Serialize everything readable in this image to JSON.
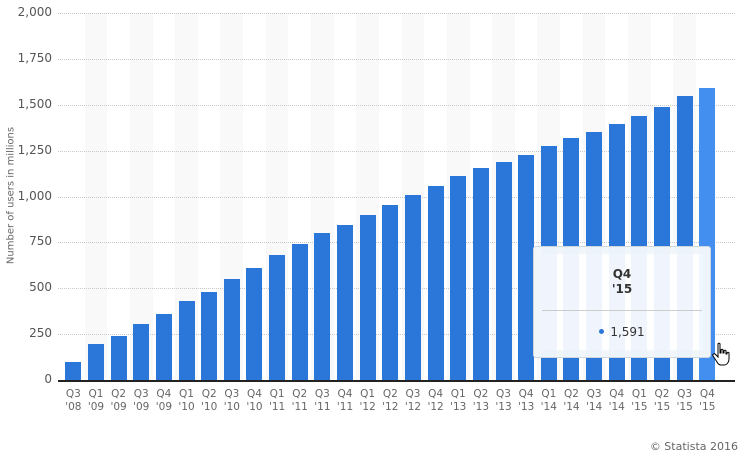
{
  "chart_data": {
    "type": "bar",
    "title": "",
    "xlabel": "",
    "ylabel": "Number of users in millions",
    "ylim": [
      0,
      2000
    ],
    "yticks": [
      0,
      250,
      500,
      750,
      1000,
      1250,
      1500,
      1750,
      2000
    ],
    "ytick_labels": [
      "0",
      "250",
      "500",
      "750",
      "1,000",
      "1,250",
      "1,500",
      "1,750",
      "2,000"
    ],
    "grid": true,
    "legend": null,
    "categories": [
      "Q3 '08",
      "Q1 '09",
      "Q2 '09",
      "Q3 '09",
      "Q4 '09",
      "Q1 '10",
      "Q2 '10",
      "Q3 '10",
      "Q4 '10",
      "Q1 '11",
      "Q2 '11",
      "Q3 '11",
      "Q4 '11",
      "Q1 '12",
      "Q2 '12",
      "Q3 '12",
      "Q4 '12",
      "Q1 '13",
      "Q2 '13",
      "Q3 '13",
      "Q4 '13",
      "Q1 '14",
      "Q2 '14",
      "Q3 '14",
      "Q4 '14",
      "Q1 '15",
      "Q2 '15",
      "Q3 '15",
      "Q4 '15"
    ],
    "category_lines": [
      [
        "Q3",
        "'08"
      ],
      [
        "Q1",
        "'09"
      ],
      [
        "Q2",
        "'09"
      ],
      [
        "Q3",
        "'09"
      ],
      [
        "Q4",
        "'09"
      ],
      [
        "Q1",
        "'10"
      ],
      [
        "Q2",
        "'10"
      ],
      [
        "Q3",
        "'10"
      ],
      [
        "Q4",
        "'10"
      ],
      [
        "Q1",
        "'11"
      ],
      [
        "Q2",
        "'11"
      ],
      [
        "Q3",
        "'11"
      ],
      [
        "Q4",
        "'11"
      ],
      [
        "Q1",
        "'12"
      ],
      [
        "Q2",
        "'12"
      ],
      [
        "Q3",
        "'12"
      ],
      [
        "Q4",
        "'12"
      ],
      [
        "Q1",
        "'13"
      ],
      [
        "Q2",
        "'13"
      ],
      [
        "Q3",
        "'13"
      ],
      [
        "Q4",
        "'13"
      ],
      [
        "Q1",
        "'14"
      ],
      [
        "Q2",
        "'14"
      ],
      [
        "Q3",
        "'14"
      ],
      [
        "Q4",
        "'14"
      ],
      [
        "Q1",
        "'15"
      ],
      [
        "Q2",
        "'15"
      ],
      [
        "Q3",
        "'15"
      ],
      [
        "Q4",
        "'15"
      ]
    ],
    "values": [
      100,
      197,
      242,
      305,
      360,
      431,
      482,
      550,
      608,
      680,
      739,
      800,
      845,
      901,
      955,
      1007,
      1056,
      1110,
      1155,
      1189,
      1228,
      1276,
      1317,
      1350,
      1393,
      1441,
      1490,
      1545,
      1591
    ],
    "highlight_index": 28,
    "bar_color": "#2b76d9",
    "highlight_color": "#438ff0"
  },
  "tooltip": {
    "title_line1": "Q4",
    "title_line2": "'15",
    "value": "1,591"
  },
  "credit": "© Statista 2016"
}
